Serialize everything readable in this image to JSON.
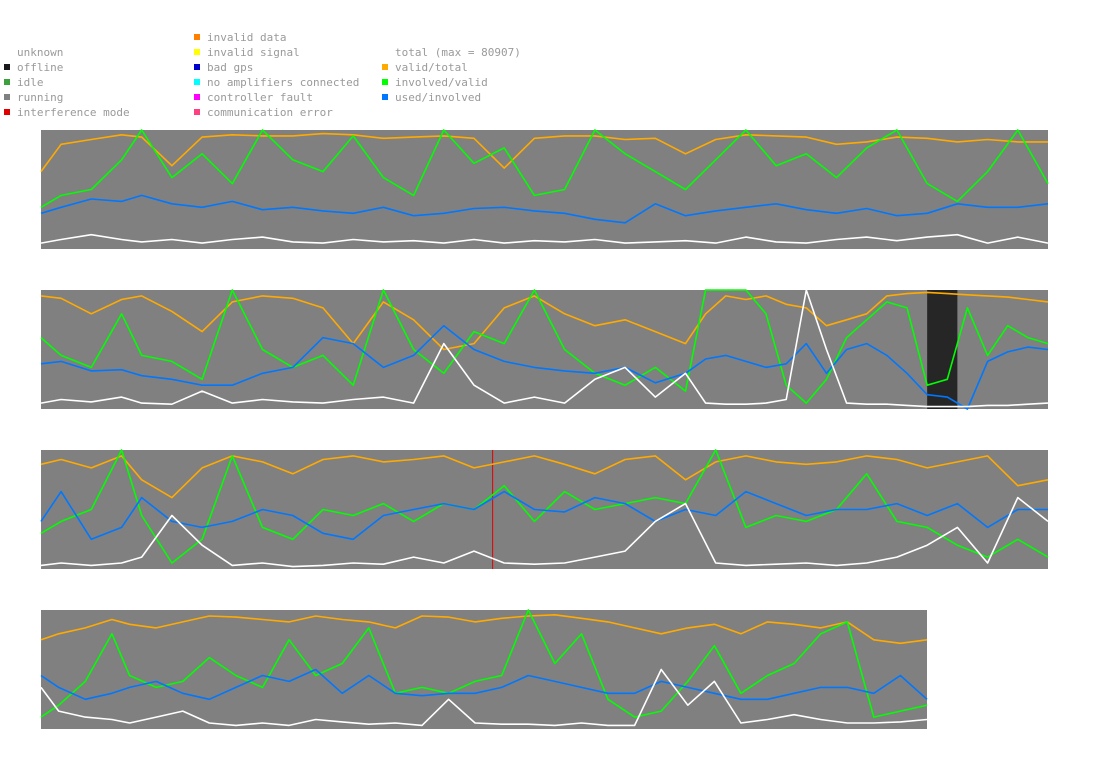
{
  "legend": {
    "columns": [
      [
        {
          "label": "",
          "color": ""
        },
        {
          "label": "unknown",
          "color": ""
        },
        {
          "label": "offline",
          "color": "#1a1a1a"
        },
        {
          "label": "idle",
          "color": "#3ca03c"
        },
        {
          "label": "running",
          "color": "#808080"
        },
        {
          "label": "interference mode",
          "color": "#e00000"
        }
      ],
      [
        {
          "label": "invalid data",
          "color": "#ff7f00"
        },
        {
          "label": "invalid signal",
          "color": "#ffff00"
        },
        {
          "label": "bad gps",
          "color": "#0000cc"
        },
        {
          "label": "no amplifiers connected",
          "color": "#00ffff"
        },
        {
          "label": "controller fault",
          "color": "#ff00ff"
        },
        {
          "label": "communication error",
          "color": "#ff4080"
        }
      ],
      [
        {
          "label": "",
          "color": ""
        },
        {
          "label": "total (max = 80907)",
          "color": ""
        },
        {
          "label": "valid/total",
          "color": "#ffaa00"
        },
        {
          "label": "involved/valid",
          "color": "#00ff00"
        },
        {
          "label": "used/involved",
          "color": "#0077ff"
        }
      ]
    ]
  },
  "chart_data": [
    {
      "type": "line",
      "background": "#808080",
      "ylim": [
        0,
        1
      ],
      "x": [
        0,
        2,
        5,
        8,
        10,
        13,
        16,
        19,
        22,
        25,
        28,
        31,
        34,
        37,
        40,
        43,
        46,
        49,
        52,
        55,
        58,
        61,
        64,
        67,
        70,
        73,
        76,
        79,
        82,
        85,
        88,
        91,
        94,
        97,
        100
      ],
      "state_spans": [],
      "series": [
        {
          "name": "valid/total",
          "color": "#ffaa00",
          "values": [
            0.65,
            0.88,
            0.92,
            0.96,
            0.94,
            0.7,
            0.94,
            0.96,
            0.95,
            0.95,
            0.97,
            0.96,
            0.93,
            0.94,
            0.95,
            0.93,
            0.68,
            0.93,
            0.95,
            0.95,
            0.92,
            0.93,
            0.8,
            0.92,
            0.96,
            0.95,
            0.94,
            0.88,
            0.9,
            0.94,
            0.93,
            0.9,
            0.92,
            0.9,
            0.9
          ]
        },
        {
          "name": "involved/valid",
          "color": "#00ff00",
          "values": [
            0.35,
            0.45,
            0.5,
            0.75,
            1.0,
            0.6,
            0.8,
            0.55,
            1.0,
            0.75,
            0.65,
            0.95,
            0.6,
            0.45,
            1.0,
            0.72,
            0.85,
            0.45,
            0.5,
            1.0,
            0.8,
            0.65,
            0.5,
            0.75,
            1.0,
            0.7,
            0.8,
            0.6,
            0.85,
            1.0,
            0.55,
            0.4,
            0.65,
            1.0,
            0.55
          ]
        },
        {
          "name": "used/involved",
          "color": "#0077ff",
          "values": [
            0.3,
            0.35,
            0.42,
            0.4,
            0.45,
            0.38,
            0.35,
            0.4,
            0.33,
            0.35,
            0.32,
            0.3,
            0.35,
            0.28,
            0.3,
            0.34,
            0.35,
            0.32,
            0.3,
            0.25,
            0.22,
            0.38,
            0.28,
            0.32,
            0.35,
            0.38,
            0.33,
            0.3,
            0.34,
            0.28,
            0.3,
            0.38,
            0.35,
            0.35,
            0.38
          ]
        },
        {
          "name": "total",
          "color": "#ffffff",
          "values": [
            0.05,
            0.08,
            0.12,
            0.08,
            0.06,
            0.08,
            0.05,
            0.08,
            0.1,
            0.06,
            0.05,
            0.08,
            0.06,
            0.07,
            0.05,
            0.08,
            0.05,
            0.07,
            0.06,
            0.08,
            0.05,
            0.06,
            0.07,
            0.05,
            0.1,
            0.06,
            0.05,
            0.08,
            0.1,
            0.07,
            0.1,
            0.12,
            0.05,
            0.1,
            0.05
          ]
        }
      ]
    },
    {
      "type": "line",
      "background": "#808080",
      "ylim": [
        0,
        1
      ],
      "x": [
        0,
        2,
        5,
        8,
        10,
        13,
        16,
        19,
        22,
        25,
        28,
        31,
        34,
        37,
        40,
        43,
        46,
        49,
        52,
        55,
        58,
        61,
        64,
        66,
        68,
        70,
        72,
        74,
        76,
        78,
        80,
        82,
        84,
        86,
        88,
        90,
        92,
        94,
        96,
        98,
        100
      ],
      "state_spans": [
        {
          "state": "offline",
          "x0": 88,
          "x1": 91,
          "color": "#262626"
        }
      ],
      "series": [
        {
          "name": "valid/total",
          "color": "#ffaa00",
          "values": [
            0.95,
            0.93,
            0.8,
            0.92,
            0.95,
            0.82,
            0.65,
            0.9,
            0.95,
            0.93,
            0.85,
            0.55,
            0.9,
            0.75,
            0.5,
            0.55,
            0.85,
            0.95,
            0.8,
            0.7,
            0.75,
            0.65,
            0.55,
            0.8,
            0.95,
            0.92,
            0.95,
            0.88,
            0.85,
            0.7,
            0.75,
            0.8,
            0.95,
            0.97,
            0.98,
            0.97,
            0.96,
            0.95,
            0.94,
            0.92,
            0.9
          ]
        },
        {
          "name": "involved/valid",
          "color": "#00ff00",
          "values": [
            0.6,
            0.45,
            0.35,
            0.8,
            0.45,
            0.4,
            0.25,
            1.0,
            0.5,
            0.35,
            0.45,
            0.2,
            1.0,
            0.5,
            0.3,
            0.65,
            0.55,
            1.0,
            0.5,
            0.3,
            0.2,
            0.35,
            0.15,
            1.0,
            1.0,
            1.0,
            0.8,
            0.2,
            0.05,
            0.25,
            0.6,
            0.75,
            0.9,
            0.85,
            0.2,
            0.25,
            0.85,
            0.45,
            0.7,
            0.6,
            0.55
          ]
        },
        {
          "name": "used/involved",
          "color": "#0077ff",
          "values": [
            0.38,
            0.4,
            0.32,
            0.33,
            0.28,
            0.25,
            0.2,
            0.2,
            0.3,
            0.35,
            0.6,
            0.55,
            0.35,
            0.45,
            0.7,
            0.5,
            0.4,
            0.35,
            0.32,
            0.3,
            0.35,
            0.22,
            0.3,
            0.42,
            0.45,
            0.4,
            0.35,
            0.38,
            0.55,
            0.3,
            0.5,
            0.55,
            0.45,
            0.3,
            0.12,
            0.1,
            0.0,
            0.4,
            0.48,
            0.52,
            0.5
          ]
        },
        {
          "name": "total",
          "color": "#ffffff",
          "values": [
            0.05,
            0.08,
            0.06,
            0.1,
            0.05,
            0.04,
            0.15,
            0.05,
            0.08,
            0.06,
            0.05,
            0.08,
            0.1,
            0.05,
            0.55,
            0.2,
            0.05,
            0.1,
            0.05,
            0.25,
            0.35,
            0.1,
            0.3,
            0.05,
            0.04,
            0.04,
            0.05,
            0.08,
            1.0,
            0.5,
            0.05,
            0.04,
            0.04,
            0.03,
            0.02,
            0.02,
            0.02,
            0.03,
            0.03,
            0.04,
            0.05
          ]
        }
      ]
    },
    {
      "type": "line",
      "background": "#808080",
      "ylim": [
        0,
        1
      ],
      "x": [
        0,
        2,
        5,
        8,
        10,
        13,
        16,
        19,
        22,
        25,
        28,
        31,
        34,
        37,
        40,
        43,
        46,
        49,
        52,
        55,
        58,
        61,
        64,
        67,
        70,
        73,
        76,
        79,
        82,
        85,
        88,
        91,
        94,
        97,
        100
      ],
      "state_spans": [
        {
          "state": "interference mode",
          "x0": 44.8,
          "x1": 44.9,
          "color": "#e00000"
        }
      ],
      "series": [
        {
          "name": "valid/total",
          "color": "#ffaa00",
          "values": [
            0.88,
            0.92,
            0.85,
            0.95,
            0.75,
            0.6,
            0.85,
            0.95,
            0.9,
            0.8,
            0.92,
            0.95,
            0.9,
            0.92,
            0.95,
            0.85,
            0.9,
            0.95,
            0.88,
            0.8,
            0.92,
            0.95,
            0.75,
            0.9,
            0.95,
            0.9,
            0.88,
            0.9,
            0.95,
            0.92,
            0.85,
            0.9,
            0.95,
            0.7,
            0.75
          ]
        },
        {
          "name": "involved/valid",
          "color": "#00ff00",
          "values": [
            0.3,
            0.4,
            0.5,
            1.0,
            0.45,
            0.05,
            0.25,
            0.95,
            0.35,
            0.25,
            0.5,
            0.45,
            0.55,
            0.4,
            0.55,
            0.5,
            0.7,
            0.4,
            0.65,
            0.5,
            0.55,
            0.6,
            0.55,
            1.0,
            0.35,
            0.45,
            0.4,
            0.5,
            0.8,
            0.4,
            0.35,
            0.2,
            0.1,
            0.25,
            0.1
          ]
        },
        {
          "name": "used/involved",
          "color": "#0077ff",
          "values": [
            0.4,
            0.65,
            0.25,
            0.35,
            0.6,
            0.4,
            0.35,
            0.4,
            0.5,
            0.45,
            0.3,
            0.25,
            0.45,
            0.5,
            0.55,
            0.5,
            0.65,
            0.5,
            0.48,
            0.6,
            0.55,
            0.4,
            0.5,
            0.45,
            0.65,
            0.55,
            0.45,
            0.5,
            0.5,
            0.55,
            0.45,
            0.55,
            0.35,
            0.5,
            0.5
          ]
        },
        {
          "name": "total",
          "color": "#ffffff",
          "values": [
            0.03,
            0.05,
            0.03,
            0.05,
            0.1,
            0.45,
            0.2,
            0.03,
            0.05,
            0.02,
            0.03,
            0.05,
            0.04,
            0.1,
            0.05,
            0.15,
            0.05,
            0.04,
            0.05,
            0.1,
            0.15,
            0.4,
            0.55,
            0.05,
            0.03,
            0.04,
            0.05,
            0.03,
            0.05,
            0.1,
            0.2,
            0.35,
            0.05,
            0.6,
            0.4
          ]
        }
      ]
    },
    {
      "type": "line",
      "background": "#808080",
      "ylim": [
        0,
        1
      ],
      "x": [
        0,
        2,
        5,
        8,
        10,
        13,
        16,
        19,
        22,
        25,
        28,
        31,
        34,
        37,
        40,
        43,
        46,
        49,
        52,
        55,
        58,
        61,
        64,
        67,
        70,
        73,
        76,
        79,
        82,
        85,
        88,
        91,
        94,
        97,
        100
      ],
      "state_spans": [],
      "series": [
        {
          "name": "valid/total",
          "color": "#ffaa00",
          "values": [
            0.75,
            0.8,
            0.85,
            0.92,
            0.88,
            0.85,
            0.9,
            0.95,
            0.94,
            0.92,
            0.9,
            0.95,
            0.92,
            0.9,
            0.85,
            0.95,
            0.94,
            0.9,
            0.93,
            0.95,
            0.96,
            0.93,
            0.9,
            0.85,
            0.8,
            0.85,
            0.88,
            0.8,
            0.9,
            0.88,
            0.85,
            0.9,
            0.75,
            0.72,
            0.75
          ]
        },
        {
          "name": "involved/valid",
          "color": "#00ff00",
          "values": [
            0.1,
            0.2,
            0.4,
            0.8,
            0.45,
            0.35,
            0.4,
            0.6,
            0.45,
            0.35,
            0.75,
            0.45,
            0.55,
            0.85,
            0.3,
            0.35,
            0.3,
            0.4,
            0.45,
            1.0,
            0.55,
            0.8,
            0.25,
            0.1,
            0.15,
            0.4,
            0.7,
            0.3,
            0.45,
            0.55,
            0.8,
            0.9,
            0.1,
            0.15,
            0.2
          ]
        },
        {
          "name": "used/involved",
          "color": "#0077ff",
          "values": [
            0.45,
            0.35,
            0.25,
            0.3,
            0.35,
            0.4,
            0.3,
            0.25,
            0.35,
            0.45,
            0.4,
            0.5,
            0.3,
            0.45,
            0.3,
            0.28,
            0.3,
            0.3,
            0.35,
            0.45,
            0.4,
            0.35,
            0.3,
            0.3,
            0.4,
            0.35,
            0.3,
            0.25,
            0.25,
            0.3,
            0.35,
            0.35,
            0.3,
            0.45,
            0.25
          ]
        },
        {
          "name": "total",
          "color": "#ffffff",
          "values": [
            0.35,
            0.15,
            0.1,
            0.08,
            0.05,
            0.1,
            0.15,
            0.05,
            0.03,
            0.05,
            0.03,
            0.08,
            0.06,
            0.04,
            0.05,
            0.03,
            0.25,
            0.05,
            0.04,
            0.04,
            0.03,
            0.05,
            0.03,
            0.03,
            0.5,
            0.2,
            0.4,
            0.05,
            0.08,
            0.12,
            0.08,
            0.05,
            0.05,
            0.06,
            0.08
          ]
        }
      ]
    }
  ]
}
